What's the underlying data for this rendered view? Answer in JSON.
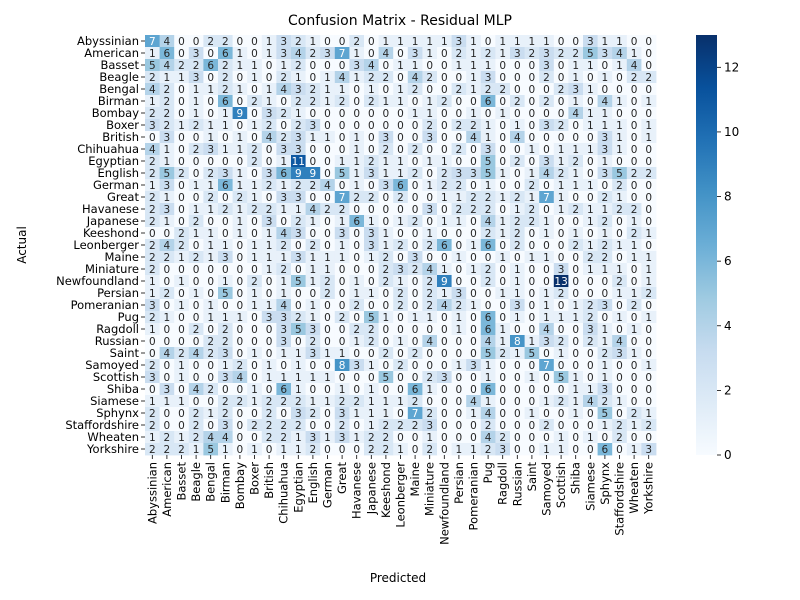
{
  "chart_data": {
    "type": "heatmap",
    "title": "Confusion Matrix - Residual MLP",
    "xlabel": "Predicted",
    "ylabel": "Actual",
    "labels": [
      "Abyssinian",
      "American",
      "Basset",
      "Beagle",
      "Bengal",
      "Birman",
      "Bombay",
      "Boxer",
      "British",
      "Chihuahua",
      "Egyptian",
      "English",
      "German",
      "Great",
      "Havanese",
      "Japanese",
      "Keeshond",
      "Leonberger",
      "Maine",
      "Miniature",
      "Newfoundland",
      "Persian",
      "Pomeranian",
      "Pug",
      "Ragdoll",
      "Russian",
      "Saint",
      "Samoyed",
      "Scottish",
      "Shiba",
      "Siamese",
      "Sphynx",
      "Staffordshire",
      "Wheaten",
      "Yorkshire"
    ],
    "matrix": [
      [
        7,
        4,
        0,
        0,
        2,
        2,
        0,
        0,
        1,
        3,
        2,
        1,
        0,
        0,
        2,
        0,
        1,
        1,
        1,
        1,
        1,
        3,
        1,
        0,
        1,
        1,
        1,
        1,
        0,
        0,
        3,
        1,
        1,
        0,
        0
      ],
      [
        1,
        6,
        0,
        3,
        0,
        6,
        1,
        0,
        1,
        3,
        4,
        2,
        3,
        7,
        1,
        0,
        4,
        0,
        3,
        1,
        0,
        2,
        1,
        2,
        1,
        3,
        2,
        3,
        2,
        2,
        5,
        3,
        4,
        1,
        0
      ],
      [
        5,
        4,
        2,
        2,
        6,
        2,
        1,
        1,
        0,
        1,
        2,
        0,
        0,
        0,
        3,
        4,
        0,
        1,
        1,
        0,
        0,
        1,
        1,
        1,
        0,
        0,
        0,
        3,
        0,
        1,
        1,
        0,
        1,
        4,
        0
      ],
      [
        2,
        1,
        1,
        3,
        0,
        2,
        0,
        1,
        0,
        2,
        1,
        0,
        1,
        4,
        1,
        2,
        2,
        0,
        4,
        2,
        0,
        0,
        1,
        3,
        0,
        0,
        0,
        2,
        0,
        1,
        0,
        1,
        0,
        2,
        2
      ],
      [
        4,
        2,
        0,
        1,
        1,
        2,
        1,
        0,
        1,
        4,
        3,
        2,
        1,
        1,
        0,
        1,
        0,
        1,
        2,
        0,
        0,
        2,
        1,
        2,
        2,
        0,
        0,
        0,
        2,
        3,
        1,
        0,
        0,
        0,
        0
      ],
      [
        1,
        2,
        0,
        1,
        0,
        6,
        0,
        2,
        1,
        0,
        2,
        2,
        1,
        2,
        0,
        2,
        1,
        1,
        0,
        1,
        2,
        0,
        0,
        6,
        0,
        2,
        0,
        2,
        0,
        1,
        0,
        4,
        1,
        0,
        1
      ],
      [
        2,
        2,
        0,
        1,
        0,
        1,
        9,
        0,
        3,
        2,
        1,
        0,
        0,
        0,
        0,
        0,
        0,
        0,
        1,
        1,
        0,
        0,
        1,
        0,
        1,
        0,
        0,
        0,
        0,
        4,
        1,
        1,
        0,
        0,
        0
      ],
      [
        3,
        2,
        1,
        2,
        1,
        1,
        0,
        1,
        2,
        0,
        2,
        3,
        0,
        0,
        0,
        0,
        0,
        0,
        0,
        2,
        0,
        2,
        2,
        1,
        0,
        1,
        0,
        3,
        2,
        0,
        1,
        1,
        1,
        0,
        1
      ],
      [
        0,
        3,
        0,
        0,
        1,
        0,
        1,
        0,
        4,
        2,
        3,
        1,
        1,
        0,
        1,
        0,
        3,
        0,
        0,
        3,
        0,
        0,
        4,
        1,
        0,
        4,
        0,
        0,
        0,
        0,
        0,
        3,
        1,
        0,
        1
      ],
      [
        4,
        1,
        0,
        2,
        3,
        1,
        1,
        2,
        0,
        3,
        3,
        0,
        0,
        0,
        1,
        0,
        2,
        0,
        2,
        0,
        0,
        2,
        0,
        3,
        0,
        0,
        1,
        0,
        1,
        1,
        1,
        3,
        1,
        0,
        0
      ],
      [
        2,
        1,
        0,
        0,
        0,
        0,
        0,
        2,
        0,
        1,
        11,
        0,
        0,
        1,
        1,
        2,
        1,
        1,
        0,
        1,
        1,
        0,
        0,
        5,
        0,
        2,
        0,
        3,
        1,
        2,
        0,
        1,
        0,
        0,
        0
      ],
      [
        2,
        5,
        2,
        0,
        2,
        3,
        1,
        0,
        3,
        6,
        9,
        9,
        0,
        5,
        1,
        3,
        1,
        1,
        2,
        0,
        2,
        3,
        3,
        5,
        1,
        0,
        1,
        4,
        2,
        1,
        0,
        3,
        5,
        2,
        2
      ],
      [
        1,
        3,
        0,
        1,
        1,
        6,
        1,
        1,
        2,
        1,
        2,
        2,
        4,
        0,
        1,
        0,
        3,
        6,
        0,
        1,
        2,
        2,
        0,
        1,
        0,
        0,
        2,
        0,
        1,
        1,
        1,
        0,
        2,
        0,
        0
      ],
      [
        2,
        1,
        0,
        0,
        2,
        0,
        2,
        1,
        0,
        3,
        3,
        0,
        0,
        7,
        2,
        2,
        0,
        2,
        0,
        0,
        1,
        1,
        2,
        2,
        1,
        2,
        1,
        7,
        1,
        0,
        0,
        2,
        1,
        0,
        0
      ],
      [
        2,
        3,
        0,
        1,
        1,
        2,
        1,
        2,
        2,
        1,
        1,
        4,
        2,
        2,
        0,
        0,
        0,
        0,
        0,
        3,
        0,
        2,
        2,
        2,
        0,
        1,
        2,
        0,
        1,
        2,
        1,
        1,
        2,
        2,
        0
      ],
      [
        2,
        1,
        0,
        2,
        0,
        0,
        1,
        0,
        3,
        0,
        2,
        1,
        0,
        1,
        6,
        1,
        0,
        1,
        2,
        0,
        1,
        1,
        0,
        4,
        1,
        2,
        2,
        1,
        0,
        0,
        1,
        2,
        0,
        1,
        0
      ],
      [
        0,
        0,
        2,
        1,
        1,
        0,
        1,
        0,
        1,
        4,
        3,
        0,
        0,
        3,
        0,
        3,
        1,
        0,
        0,
        1,
        0,
        0,
        0,
        2,
        1,
        2,
        0,
        1,
        0,
        1,
        0,
        1,
        0,
        2,
        1
      ],
      [
        2,
        4,
        2,
        0,
        1,
        1,
        0,
        1,
        1,
        2,
        0,
        2,
        0,
        1,
        0,
        3,
        1,
        2,
        0,
        2,
        6,
        0,
        1,
        6,
        0,
        2,
        0,
        0,
        0,
        2,
        1,
        2,
        1,
        1,
        0
      ],
      [
        2,
        2,
        1,
        2,
        1,
        3,
        0,
        1,
        1,
        1,
        3,
        1,
        1,
        1,
        0,
        1,
        2,
        0,
        3,
        0,
        0,
        1,
        0,
        0,
        1,
        0,
        1,
        1,
        0,
        0,
        2,
        2,
        0,
        1,
        1
      ],
      [
        2,
        0,
        0,
        0,
        0,
        0,
        0,
        0,
        1,
        2,
        0,
        1,
        1,
        0,
        0,
        0,
        2,
        3,
        2,
        4,
        1,
        0,
        1,
        2,
        0,
        1,
        0,
        0,
        3,
        0,
        1,
        1,
        1,
        0,
        1
      ],
      [
        1,
        0,
        1,
        0,
        0,
        1,
        0,
        2,
        0,
        1,
        5,
        1,
        2,
        0,
        1,
        0,
        2,
        1,
        0,
        2,
        9,
        0,
        0,
        2,
        0,
        1,
        0,
        0,
        13,
        0,
        0,
        0,
        2,
        0,
        1
      ],
      [
        1,
        2,
        0,
        1,
        0,
        5,
        0,
        1,
        0,
        1,
        0,
        0,
        2,
        0,
        1,
        1,
        0,
        2,
        0,
        2,
        1,
        3,
        0,
        0,
        1,
        1,
        0,
        1,
        2,
        0,
        0,
        0,
        1,
        1,
        2
      ],
      [
        3,
        0,
        1,
        0,
        1,
        0,
        0,
        1,
        1,
        4,
        0,
        1,
        0,
        0,
        2,
        0,
        0,
        2,
        0,
        2,
        4,
        2,
        1,
        0,
        0,
        3,
        0,
        1,
        0,
        1,
        2,
        3,
        0,
        2,
        0
      ],
      [
        2,
        1,
        0,
        0,
        1,
        1,
        1,
        0,
        3,
        3,
        2,
        1,
        0,
        2,
        0,
        5,
        1,
        0,
        1,
        1,
        0,
        1,
        0,
        6,
        0,
        1,
        0,
        1,
        1,
        1,
        2,
        0,
        1,
        0,
        1
      ],
      [
        1,
        0,
        0,
        2,
        0,
        2,
        0,
        0,
        0,
        3,
        5,
        3,
        0,
        0,
        2,
        2,
        0,
        0,
        0,
        0,
        0,
        1,
        0,
        6,
        1,
        0,
        0,
        4,
        0,
        0,
        3,
        1,
        0,
        1,
        0
      ],
      [
        0,
        0,
        0,
        0,
        2,
        2,
        0,
        0,
        0,
        3,
        0,
        2,
        0,
        0,
        1,
        2,
        0,
        1,
        0,
        4,
        0,
        0,
        0,
        4,
        1,
        8,
        1,
        3,
        2,
        0,
        2,
        1,
        4,
        0,
        0
      ],
      [
        0,
        4,
        2,
        4,
        2,
        3,
        0,
        1,
        0,
        1,
        1,
        3,
        1,
        1,
        0,
        0,
        2,
        0,
        2,
        0,
        0,
        0,
        0,
        5,
        2,
        1,
        5,
        0,
        1,
        0,
        0,
        2,
        3,
        1,
        0
      ],
      [
        2,
        0,
        1,
        0,
        0,
        1,
        2,
        0,
        1,
        0,
        1,
        0,
        0,
        8,
        3,
        1,
        0,
        2,
        0,
        0,
        0,
        1,
        3,
        1,
        0,
        0,
        0,
        7,
        0,
        0,
        0,
        1,
        0,
        0,
        1
      ],
      [
        3,
        0,
        1,
        0,
        0,
        3,
        4,
        0,
        1,
        1,
        1,
        1,
        1,
        0,
        0,
        0,
        5,
        0,
        0,
        2,
        3,
        0,
        0,
        1,
        0,
        0,
        1,
        0,
        5,
        1,
        0,
        1,
        0,
        0,
        0
      ],
      [
        0,
        3,
        0,
        4,
        2,
        0,
        0,
        1,
        0,
        6,
        1,
        0,
        0,
        1,
        0,
        1,
        0,
        0,
        6,
        1,
        0,
        0,
        0,
        6,
        0,
        0,
        0,
        0,
        0,
        1,
        1,
        3,
        0,
        0,
        0
      ],
      [
        1,
        1,
        1,
        0,
        0,
        2,
        2,
        1,
        2,
        2,
        2,
        1,
        1,
        2,
        2,
        1,
        1,
        1,
        2,
        0,
        0,
        0,
        4,
        1,
        0,
        0,
        0,
        1,
        2,
        1,
        4,
        2,
        1,
        0,
        0
      ],
      [
        2,
        0,
        0,
        2,
        1,
        2,
        0,
        0,
        2,
        0,
        3,
        2,
        0,
        3,
        1,
        1,
        1,
        0,
        7,
        2,
        0,
        0,
        1,
        4,
        0,
        0,
        1,
        0,
        0,
        1,
        0,
        5,
        0,
        2,
        1
      ],
      [
        2,
        0,
        0,
        2,
        0,
        3,
        0,
        2,
        2,
        2,
        2,
        0,
        0,
        2,
        0,
        1,
        2,
        2,
        2,
        3,
        0,
        0,
        0,
        2,
        0,
        0,
        0,
        2,
        0,
        0,
        0,
        1,
        2,
        1,
        2
      ],
      [
        1,
        2,
        1,
        2,
        4,
        4,
        0,
        0,
        2,
        2,
        1,
        3,
        1,
        3,
        1,
        2,
        2,
        0,
        0,
        1,
        0,
        0,
        0,
        4,
        2,
        0,
        0,
        0,
        1,
        0,
        1,
        0,
        2,
        0,
        0
      ],
      [
        2,
        2,
        2,
        1,
        5,
        1,
        0,
        1,
        0,
        1,
        1,
        2,
        0,
        0,
        0,
        2,
        2,
        1,
        0,
        2,
        0,
        1,
        1,
        2,
        3,
        0,
        0,
        1,
        1,
        0,
        0,
        6,
        0,
        1,
        3
      ]
    ],
    "colorbar": {
      "min": 0,
      "max": 13,
      "ticks": [
        0,
        2,
        4,
        6,
        8,
        10,
        12
      ],
      "colormap": "Blues"
    },
    "colors": {
      "low": "#f7fbff",
      "high": "#08306b"
    }
  }
}
